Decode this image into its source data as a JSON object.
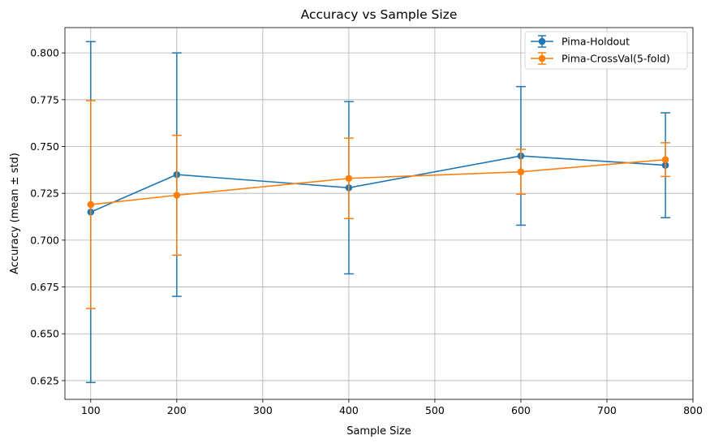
{
  "chart_data": {
    "type": "line",
    "title": "Accuracy vs Sample Size",
    "xlabel": "Sample Size",
    "ylabel": "Accuracy (mean ± std)",
    "xlim": [
      70,
      800
    ],
    "ylim": [
      0.615,
      0.8135
    ],
    "xticks": [
      100,
      200,
      300,
      400,
      500,
      600,
      700,
      800
    ],
    "yticks": [
      0.625,
      0.65,
      0.675,
      0.7,
      0.725,
      0.75,
      0.775,
      0.8
    ],
    "xtick_labels": [
      "100",
      "200",
      "300",
      "400",
      "500",
      "600",
      "700",
      "800"
    ],
    "ytick_labels": [
      "0.625",
      "0.650",
      "0.675",
      "0.700",
      "0.725",
      "0.750",
      "0.775",
      "0.800"
    ],
    "grid": true,
    "legend_position": "top-right",
    "series": [
      {
        "name": "Pima-Holdout",
        "color": "#1f77b4",
        "x": [
          100,
          200,
          400,
          600,
          768
        ],
        "y": [
          0.715,
          0.735,
          0.728,
          0.745,
          0.74
        ],
        "yerr": [
          0.091,
          0.065,
          0.046,
          0.037,
          0.028
        ]
      },
      {
        "name": "Pima-CrossVal(5-fold)",
        "color": "#ff7f0e",
        "x": [
          100,
          200,
          400,
          600,
          768
        ],
        "y": [
          0.719,
          0.724,
          0.733,
          0.7365,
          0.743
        ],
        "yerr": [
          0.0555,
          0.032,
          0.0215,
          0.012,
          0.009
        ]
      }
    ]
  }
}
